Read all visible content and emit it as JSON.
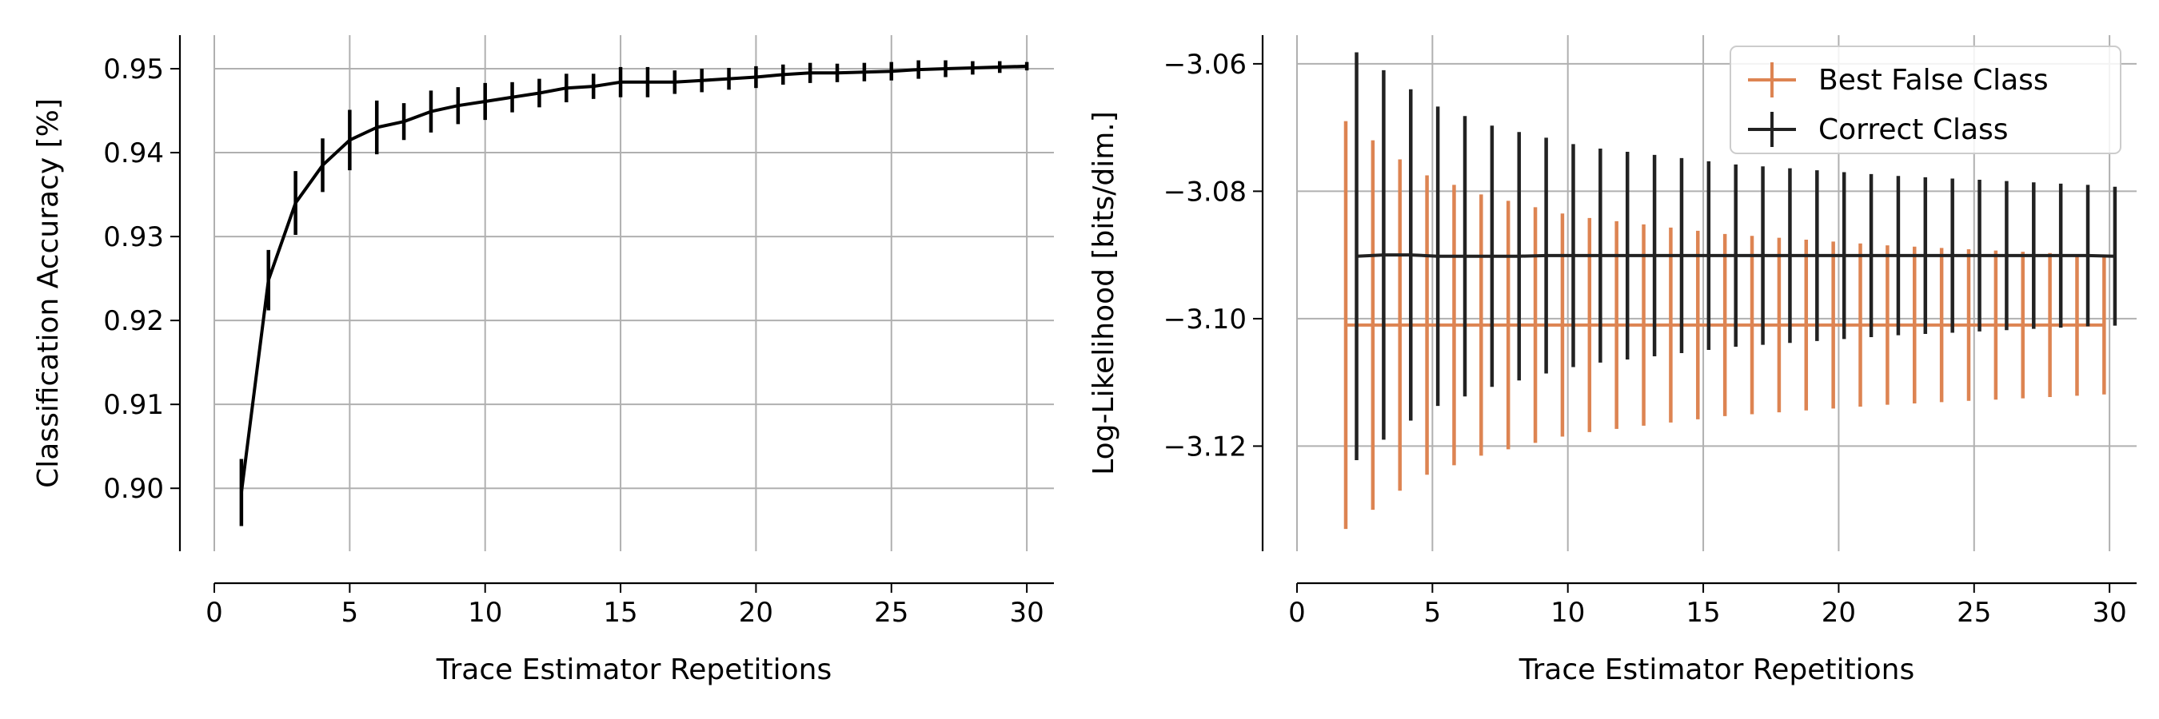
{
  "chart_data": [
    {
      "type": "line",
      "xlabel": "Trace Estimator Repetitions",
      "ylabel": "Classification Accuracy [%]",
      "xlim": [
        0,
        31
      ],
      "ylim": [
        0.8925,
        0.954
      ],
      "xticks": [
        0,
        5,
        10,
        15,
        20,
        25,
        30
      ],
      "xtick_labels": [
        "0",
        "5",
        "10",
        "15",
        "20",
        "25",
        "30"
      ],
      "yticks": [
        0.9,
        0.91,
        0.92,
        0.93,
        0.94,
        0.95
      ],
      "ytick_labels": [
        "0.90",
        "0.91",
        "0.92",
        "0.93",
        "0.94",
        "0.95"
      ],
      "grid": true,
      "series": [
        {
          "color": "#000000",
          "x": [
            1,
            2,
            3,
            4,
            5,
            6,
            7,
            8,
            9,
            10,
            11,
            12,
            13,
            14,
            15,
            16,
            17,
            18,
            19,
            20,
            21,
            22,
            23,
            24,
            25,
            26,
            27,
            28,
            29,
            30
          ],
          "y": [
            0.8995,
            0.9248,
            0.934,
            0.9385,
            0.9415,
            0.943,
            0.9437,
            0.9449,
            0.9456,
            0.9461,
            0.9466,
            0.9471,
            0.9477,
            0.9479,
            0.9484,
            0.9484,
            0.9484,
            0.9486,
            0.9488,
            0.949,
            0.9493,
            0.9495,
            0.9495,
            0.9496,
            0.9497,
            0.9499,
            0.95,
            0.9501,
            0.9502,
            0.9503
          ],
          "err": [
            0.004,
            0.0036,
            0.0038,
            0.0032,
            0.0036,
            0.0032,
            0.0022,
            0.0025,
            0.0022,
            0.0022,
            0.0018,
            0.0017,
            0.0017,
            0.0015,
            0.0018,
            0.0018,
            0.0014,
            0.0014,
            0.0013,
            0.0013,
            0.0012,
            0.0012,
            0.0011,
            0.0011,
            0.0011,
            0.0011,
            0.001,
            0.0008,
            0.0007,
            0.0005
          ]
        }
      ]
    },
    {
      "type": "line",
      "xlabel": "Trace Estimator Repetitions",
      "ylabel": "Log-Likelihood [bits/dim.]",
      "xlim": [
        0,
        31
      ],
      "ylim": [
        -3.1365,
        -3.0555
      ],
      "xticks": [
        0,
        5,
        10,
        15,
        20,
        25,
        30
      ],
      "xtick_labels": [
        "0",
        "5",
        "10",
        "15",
        "20",
        "25",
        "30"
      ],
      "yticks": [
        -3.12,
        -3.1,
        -3.08,
        -3.06
      ],
      "ytick_labels": [
        "−3.12",
        "−3.10",
        "−3.08",
        "−3.06"
      ],
      "grid": true,
      "legend": "top-right",
      "series": [
        {
          "name": "Best False Class",
          "color": "#dd8452",
          "x": [
            1.8,
            2.8,
            3.8,
            4.8,
            5.8,
            6.8,
            7.8,
            8.8,
            9.8,
            10.8,
            11.8,
            12.8,
            13.8,
            14.8,
            15.8,
            16.8,
            17.8,
            18.8,
            19.8,
            20.8,
            21.8,
            22.8,
            23.8,
            24.8,
            25.8,
            26.8,
            27.8,
            28.8,
            29.8
          ],
          "y": [
            -3.101,
            -3.101,
            -3.101,
            -3.101,
            -3.101,
            -3.101,
            -3.101,
            -3.101,
            -3.101,
            -3.101,
            -3.101,
            -3.101,
            -3.101,
            -3.101,
            -3.101,
            -3.101,
            -3.101,
            -3.101,
            -3.101,
            -3.101,
            -3.101,
            -3.101,
            -3.101,
            -3.101,
            -3.101,
            -3.101,
            -3.101,
            -3.101,
            -3.101
          ],
          "err": [
            0.032,
            0.029,
            0.026,
            0.0235,
            0.022,
            0.0205,
            0.0195,
            0.0185,
            0.0175,
            0.0168,
            0.0163,
            0.0158,
            0.0153,
            0.0148,
            0.0143,
            0.014,
            0.0137,
            0.0134,
            0.0131,
            0.0128,
            0.0125,
            0.0123,
            0.0121,
            0.0119,
            0.0117,
            0.0115,
            0.0113,
            0.0111,
            0.0109
          ]
        },
        {
          "name": "Correct Class",
          "color": "#222222",
          "x": [
            2.2,
            3.2,
            4.2,
            5.2,
            6.2,
            7.2,
            8.2,
            9.2,
            10.2,
            11.2,
            12.2,
            13.2,
            14.2,
            15.2,
            16.2,
            17.2,
            18.2,
            19.2,
            20.2,
            21.2,
            22.2,
            23.2,
            24.2,
            25.2,
            26.2,
            27.2,
            28.2,
            29.2,
            30.2
          ],
          "y": [
            -3.0902,
            -3.09,
            -3.09,
            -3.0902,
            -3.0902,
            -3.0902,
            -3.0902,
            -3.0901,
            -3.0901,
            -3.0901,
            -3.0901,
            -3.0901,
            -3.0901,
            -3.0901,
            -3.0901,
            -3.0901,
            -3.0901,
            -3.0901,
            -3.0901,
            -3.0901,
            -3.0901,
            -3.0901,
            -3.0901,
            -3.0901,
            -3.0901,
            -3.0901,
            -3.0901,
            -3.0901,
            -3.0902
          ],
          "err": [
            0.032,
            0.029,
            0.026,
            0.0235,
            0.022,
            0.0205,
            0.0195,
            0.0185,
            0.0175,
            0.0168,
            0.0163,
            0.0158,
            0.0153,
            0.0148,
            0.0143,
            0.014,
            0.0137,
            0.0134,
            0.0131,
            0.0128,
            0.0125,
            0.0123,
            0.0121,
            0.0119,
            0.0117,
            0.0115,
            0.0113,
            0.0111,
            0.0109
          ]
        }
      ]
    }
  ]
}
